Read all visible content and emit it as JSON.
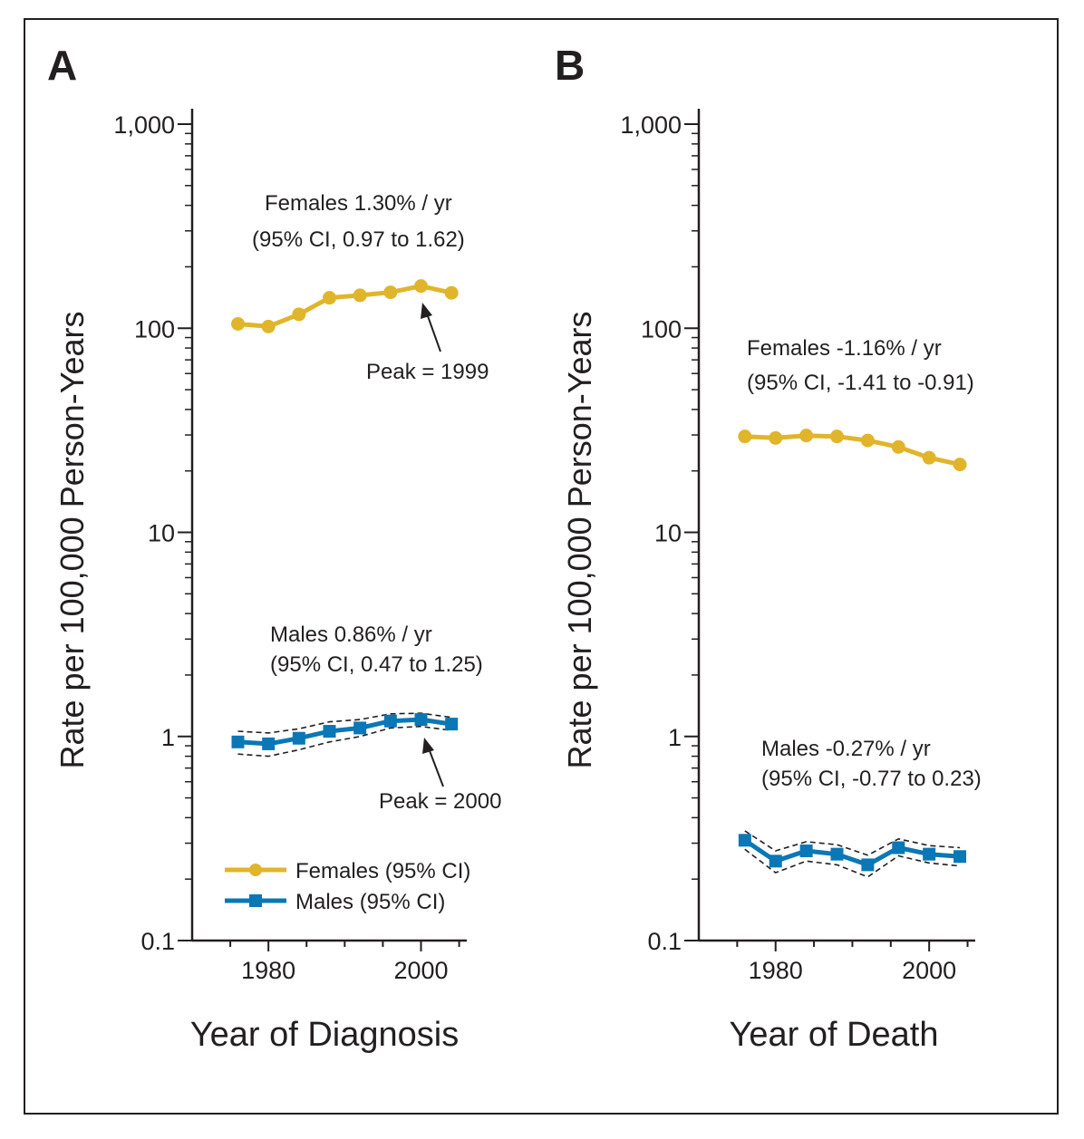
{
  "colors": {
    "females": "#e1b52b",
    "males": "#0a77b6",
    "axis": "#231f20",
    "ci": "#231f20"
  },
  "legend": [
    {
      "label": "Females (95% CI)",
      "marker": "circle",
      "color": "#e1b52b"
    },
    {
      "label": "Males (95% CI)",
      "marker": "square",
      "color": "#0a77b6"
    }
  ],
  "chart_data": [
    {
      "panel": "A",
      "type": "line",
      "xlabel": "Year of Diagnosis",
      "ylabel": "Rate per 100,000 Person-Years",
      "yscale": "log",
      "ylim": [
        0.1,
        1000
      ],
      "xlim": [
        1970,
        2006
      ],
      "yticks": [
        {
          "v": 1000,
          "label": "1,000"
        },
        {
          "v": 100,
          "label": "100"
        },
        {
          "v": 10,
          "label": "10"
        },
        {
          "v": 1,
          "label": "1"
        },
        {
          "v": 0.1,
          "label": "0.1"
        }
      ],
      "xticks": [
        {
          "v": 1980,
          "label": "1980"
        },
        {
          "v": 2000,
          "label": "2000"
        }
      ],
      "series": [
        {
          "name": "Females",
          "marker": "circle",
          "x": [
            1976,
            1980,
            1984,
            1988,
            1992,
            1996,
            2000,
            2004
          ],
          "y": [
            105,
            102,
            117,
            141,
            145,
            150,
            161,
            149
          ]
        },
        {
          "name": "Males",
          "marker": "square",
          "x": [
            1976,
            1980,
            1984,
            1988,
            1992,
            1996,
            2000,
            2004
          ],
          "y": [
            0.94,
            0.92,
            0.98,
            1.06,
            1.1,
            1.19,
            1.21,
            1.15
          ],
          "ci_lower": [
            0.82,
            0.8,
            0.86,
            0.94,
            1.0,
            1.1,
            1.12,
            1.07
          ],
          "ci_upper": [
            1.06,
            1.04,
            1.09,
            1.18,
            1.21,
            1.29,
            1.3,
            1.24
          ]
        }
      ],
      "annotations": {
        "females_line1": "Females 1.30% / yr",
        "females_line2": "(95% CI, 0.97 to 1.62)",
        "females_peak": "Peak = 1999",
        "males_line1": "Males 0.86% / yr",
        "males_line2": "(95% CI, 0.47 to 1.25)",
        "males_peak": "Peak = 2000"
      }
    },
    {
      "panel": "B",
      "type": "line",
      "xlabel": "Year of Death",
      "ylabel": "Rate per 100,000 Person-Years",
      "yscale": "log",
      "ylim": [
        0.1,
        1000
      ],
      "xlim": [
        1970,
        2006
      ],
      "yticks": [
        {
          "v": 1000,
          "label": "1,000"
        },
        {
          "v": 100,
          "label": "100"
        },
        {
          "v": 10,
          "label": "10"
        },
        {
          "v": 1,
          "label": "1"
        },
        {
          "v": 0.1,
          "label": "0.1"
        }
      ],
      "xticks": [
        {
          "v": 1980,
          "label": "1980"
        },
        {
          "v": 2000,
          "label": "2000"
        }
      ],
      "series": [
        {
          "name": "Females",
          "marker": "circle",
          "x": [
            1976,
            1980,
            1984,
            1988,
            1992,
            1996,
            2000,
            2004
          ],
          "y": [
            29.5,
            29.0,
            29.8,
            29.5,
            28.2,
            26.2,
            23.2,
            21.5
          ]
        },
        {
          "name": "Males",
          "marker": "square",
          "x": [
            1976,
            1980,
            1984,
            1988,
            1992,
            1996,
            2000,
            2004
          ],
          "y": [
            0.31,
            0.245,
            0.275,
            0.265,
            0.235,
            0.285,
            0.265,
            0.258
          ],
          "ci_lower": [
            0.28,
            0.215,
            0.245,
            0.235,
            0.205,
            0.26,
            0.24,
            0.232
          ],
          "ci_upper": [
            0.345,
            0.275,
            0.305,
            0.295,
            0.262,
            0.315,
            0.292,
            0.285
          ]
        }
      ],
      "annotations": {
        "females_line1": "Females -1.16% / yr",
        "females_line2": "(95% CI, -1.41 to -0.91)",
        "males_line1": "Males -0.27% / yr",
        "males_line2": "(95% CI, -0.77 to 0.23)"
      }
    }
  ]
}
